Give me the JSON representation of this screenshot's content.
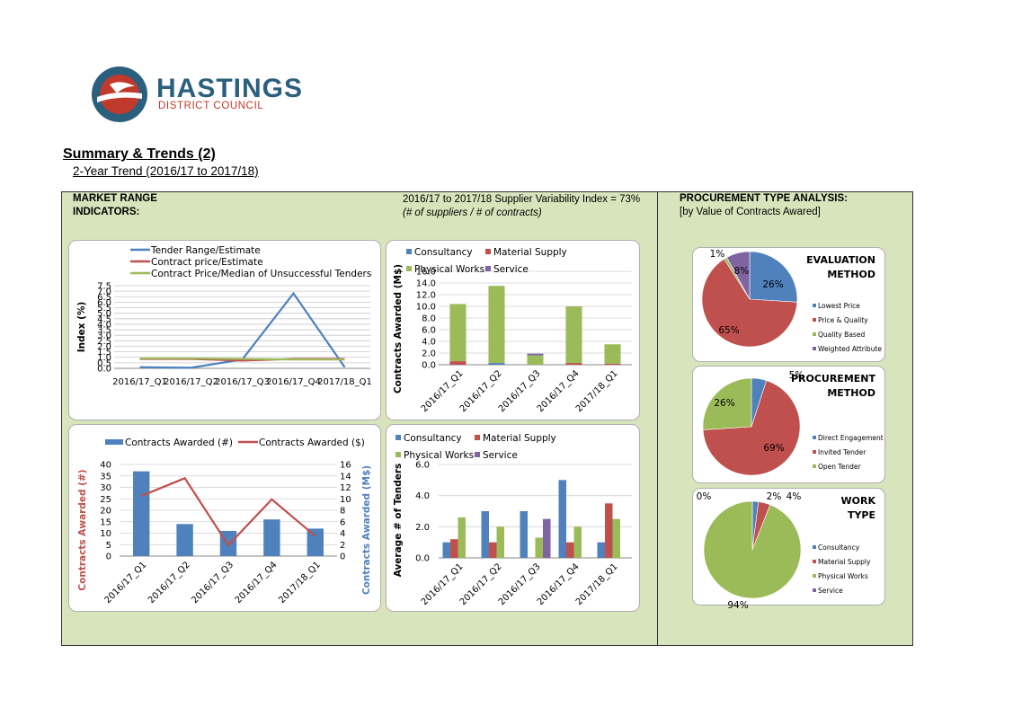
{
  "logo": {
    "name": "HASTINGS",
    "sub": "DISTRICT COUNCIL"
  },
  "page": {
    "title": "Summary & Trends (2)",
    "subtitle": "2-Year Trend (2016/17 to 2017/18)"
  },
  "market": {
    "line1": "MARKET RANGE",
    "line2": "INDICATORS:"
  },
  "variability": {
    "line1": "2016/17 to 2017/18 Supplier Variability Index = 73%",
    "line2": "(# of suppliers / # of contracts)"
  },
  "procurement": {
    "line1": "PROCUREMENT TYPE ANALYSIS:",
    "line2": "[by Value of Contracts Awared]"
  },
  "colors": {
    "blue": "#4f81bd",
    "red": "#c0504d",
    "green": "#9bbb59",
    "purple": "#8064a2"
  },
  "chart_data": [
    {
      "type": "line",
      "ylabel": "Index (%)",
      "categories": [
        "2016/17_Q1",
        "2016/17_Q2",
        "2016/17_Q3",
        "2016/17_Q4",
        "2017/18_Q1"
      ],
      "yticks": [
        "0.0",
        "0.5",
        "1.0",
        "1.5",
        "2.0",
        "2.5",
        "3.0",
        "3.5",
        "4.0",
        "4.5",
        "5.0",
        "5.5",
        "6.0",
        "6.5",
        "7.0",
        "7.5"
      ],
      "ylim": [
        0,
        7.5
      ],
      "series": [
        {
          "name": "Tender Range/Estimate",
          "color": "#4f81bd",
          "values": [
            0.1,
            0.05,
            0.8,
            6.8,
            0.1
          ]
        },
        {
          "name": "Contract price/Estimate",
          "color": "#c0504d",
          "values": [
            0.85,
            0.85,
            0.7,
            0.85,
            0.85
          ]
        },
        {
          "name": "Contract Price/Median of Unsuccessful Tenders",
          "color": "#9bbb59",
          "values": [
            0.9,
            0.9,
            0.85,
            0.8,
            0.8
          ]
        }
      ]
    },
    {
      "type": "bar",
      "stacked": true,
      "ylabel": "Contracts Awarded (M$)",
      "categories": [
        "2016/17_Q1",
        "2016/17_Q2",
        "2016/17_Q3",
        "2016/17_Q4",
        "2017/18_Q1"
      ],
      "yticks": [
        "0.0",
        "2.0",
        "4.0",
        "6.0",
        "8.0",
        "10.0",
        "12.0",
        "14.0",
        "16.0"
      ],
      "ylim": [
        0,
        16
      ],
      "series": [
        {
          "name": "Consultancy",
          "color": "#4f81bd",
          "values": [
            0.0,
            0.3,
            0.0,
            0.0,
            0.0
          ]
        },
        {
          "name": "Material Supply",
          "color": "#c0504d",
          "values": [
            0.6,
            0.0,
            0.0,
            0.3,
            0.2
          ]
        },
        {
          "name": "Physical Works",
          "color": "#9bbb59",
          "values": [
            9.8,
            13.2,
            1.6,
            9.7,
            3.3
          ]
        },
        {
          "name": "Service",
          "color": "#8064a2",
          "values": [
            0.0,
            0.0,
            0.3,
            0.0,
            0.0
          ]
        }
      ]
    },
    {
      "type": "bar+line",
      "ylabel_left": "Contracts Awarded (#)",
      "ylabel_right": "Contracts Awarded (M$)",
      "categories": [
        "2016/17_Q1",
        "2016/17_Q2",
        "2016/17_Q3",
        "2016/17_Q4",
        "2017/18_Q1"
      ],
      "yticks_left": [
        "0",
        "5",
        "10",
        "15",
        "20",
        "25",
        "30",
        "35",
        "40"
      ],
      "yticks_right": [
        "0",
        "2",
        "4",
        "6",
        "8",
        "10",
        "12",
        "14",
        "16"
      ],
      "ylim_left": [
        0,
        40
      ],
      "ylim_right": [
        0,
        16
      ],
      "series": [
        {
          "name": "Contracts Awarded (#)",
          "color": "#4f81bd",
          "values": [
            37,
            14,
            11,
            16,
            12
          ]
        },
        {
          "name": "Contracts Awarded ($)",
          "color": "#c0504d",
          "values": [
            10.5,
            13.6,
            1.9,
            9.9,
            3.5
          ]
        }
      ]
    },
    {
      "type": "bar",
      "ylabel": "Average # of Tenders",
      "categories": [
        "2016/17_Q1",
        "2016/17_Q2",
        "2016/17_Q3",
        "2016/17_Q4",
        "2017/18_Q1"
      ],
      "yticks": [
        "0.0",
        "2.0",
        "4.0",
        "6.0"
      ],
      "ylim": [
        0,
        6
      ],
      "series": [
        {
          "name": "Consultancy",
          "color": "#4f81bd",
          "values": [
            1.0,
            3.0,
            3.0,
            5.0,
            1.0
          ]
        },
        {
          "name": "Material Supply",
          "color": "#c0504d",
          "values": [
            1.2,
            1.0,
            0.0,
            1.0,
            3.5
          ]
        },
        {
          "name": "Physical Works",
          "color": "#9bbb59",
          "values": [
            2.6,
            2.0,
            1.3,
            2.0,
            2.5
          ]
        },
        {
          "name": "Service",
          "color": "#8064a2",
          "values": [
            0.0,
            0.0,
            2.5,
            0.0,
            0.0
          ]
        }
      ]
    },
    {
      "type": "pie",
      "title": "EVALUATION METHOD",
      "slices": [
        {
          "name": "Lowest Price",
          "value": 26,
          "label": "26%",
          "color": "#4f81bd"
        },
        {
          "name": "Price & Quality",
          "value": 65,
          "label": "65%",
          "color": "#c0504d"
        },
        {
          "name": "Quality Based",
          "value": 1,
          "label": "1%",
          "color": "#9bbb59"
        },
        {
          "name": "Weighted Attribute",
          "value": 8,
          "label": "8%",
          "color": "#8064a2"
        }
      ]
    },
    {
      "type": "pie",
      "title": "PROCUREMENT METHOD",
      "slices": [
        {
          "name": "Direct Engagement",
          "value": 5,
          "label": "5%",
          "color": "#4f81bd"
        },
        {
          "name": "Invited Tender",
          "value": 69,
          "label": "69%",
          "color": "#c0504d"
        },
        {
          "name": "Open Tender",
          "value": 26,
          "label": "26%",
          "color": "#9bbb59"
        }
      ]
    },
    {
      "type": "pie",
      "title": "WORK TYPE",
      "slices": [
        {
          "name": "Consultancy",
          "value": 2,
          "label": "2%",
          "color": "#4f81bd"
        },
        {
          "name": "Material Supply",
          "value": 4,
          "label": "4%",
          "color": "#c0504d"
        },
        {
          "name": "Physical Works",
          "value": 94,
          "label": "94%",
          "color": "#9bbb59"
        },
        {
          "name": "Service",
          "value": 0,
          "label": "0%",
          "color": "#8064a2"
        }
      ]
    }
  ]
}
